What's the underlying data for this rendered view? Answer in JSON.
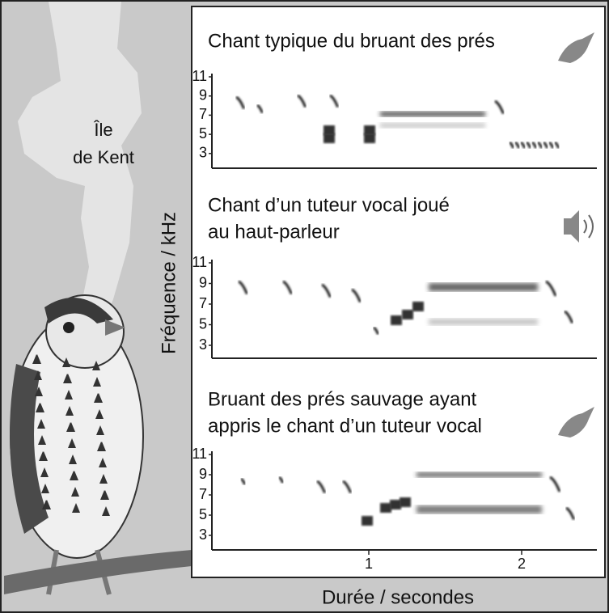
{
  "island_label": [
    "Île",
    "de Kent"
  ],
  "y_axis_label": "Fréquence / kHz",
  "x_axis_label": "Durée / secondes",
  "x_ticks": [
    "1",
    "2"
  ],
  "panels": [
    {
      "title": [
        "Chant typique du bruant des prés"
      ],
      "y_ticks": [
        "11",
        "9",
        "7",
        "5",
        "3"
      ]
    },
    {
      "title": [
        "Chant d’un tuteur vocal joué",
        "au haut-parleur"
      ],
      "y_ticks": [
        "11",
        "9",
        "7",
        "5",
        "3"
      ]
    },
    {
      "title": [
        "Bruant des prés sauvage ayant",
        "appris le chant d’un tuteur vocal"
      ],
      "y_ticks": [
        "11",
        "9",
        "7",
        "5",
        "3"
      ]
    }
  ]
}
